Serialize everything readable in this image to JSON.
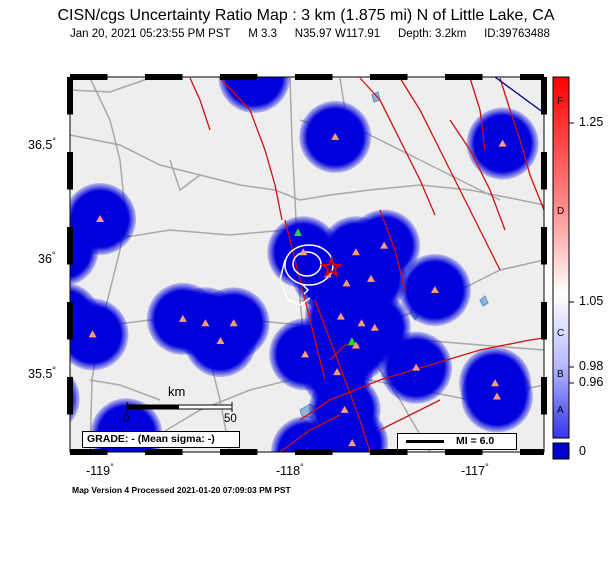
{
  "title": "CISN/cgs Uncertainty Ratio Map : 3 km (1.875 mi) N of Little Lake, CA",
  "subtitle": {
    "datetime": "Jan 20, 2021 05:23:55 PM PST",
    "magnitude": "M 3.3",
    "location": "N35.97 W117.91",
    "depth": "Depth: 3.2km",
    "id": "ID:39763488"
  },
  "axes": {
    "lat_labels": [
      {
        "value": "36.5",
        "deg": "°"
      },
      {
        "value": "36",
        "deg": "°"
      },
      {
        "value": "35.5",
        "deg": "°"
      }
    ],
    "lon_labels": [
      {
        "value": "-119",
        "deg": "°"
      },
      {
        "value": "-118",
        "deg": "°"
      },
      {
        "value": "-117",
        "deg": "°"
      }
    ]
  },
  "scale_bar": {
    "unit": "km",
    "min": "0",
    "max": "50"
  },
  "grade_text": "GRADE: - (Mean sigma: -)",
  "mmi_legend": "MI = 6.0",
  "footer": "Map Version 4 Processed 2021-01-20 07:09:03 PM PST",
  "colorbar": {
    "ticks": [
      "1.25",
      "1.05",
      "0.98",
      "0.96",
      "0"
    ],
    "letters": [
      "F",
      "D",
      "C",
      "B",
      "A"
    ],
    "colors": {
      "top": "#ff0000",
      "mid": "#ffffff",
      "bottom": "#0000cc"
    }
  },
  "colors": {
    "land": "#eeeeee",
    "station_blob": "#0000dd",
    "fault": "#cc1111",
    "road": "#a8a8a8",
    "water": "#8fb3d9",
    "station_marker": "#ff9a7a",
    "epicenter": "#dd0000"
  },
  "stations": [
    {
      "lon": -118.32,
      "lat": 36.83
    },
    {
      "lon": -117.89,
      "lat": 36.56
    },
    {
      "lon": -117.0,
      "lat": 36.53
    },
    {
      "lon": -119.34,
      "lat": 36.05
    },
    {
      "lon": -119.14,
      "lat": 36.19
    },
    {
      "lon": -118.06,
      "lat": 36.04
    },
    {
      "lon": -117.78,
      "lat": 36.04
    },
    {
      "lon": -117.63,
      "lat": 36.07
    },
    {
      "lon": -117.36,
      "lat": 35.87
    },
    {
      "lon": -117.93,
      "lat": 35.94
    },
    {
      "lon": -117.83,
      "lat": 35.9
    },
    {
      "lon": -117.7,
      "lat": 35.92
    },
    {
      "lon": -117.86,
      "lat": 35.75
    },
    {
      "lon": -117.75,
      "lat": 35.72
    },
    {
      "lon": -117.68,
      "lat": 35.7
    },
    {
      "lon": -117.78,
      "lat": 35.62
    },
    {
      "lon": -118.05,
      "lat": 35.58
    },
    {
      "lon": -117.88,
      "lat": 35.5
    },
    {
      "lon": -117.46,
      "lat": 35.52
    },
    {
      "lon": -117.04,
      "lat": 35.45
    },
    {
      "lon": -117.03,
      "lat": 35.39
    },
    {
      "lon": -119.33,
      "lat": 35.74
    },
    {
      "lon": -119.18,
      "lat": 35.67
    },
    {
      "lon": -118.7,
      "lat": 35.74
    },
    {
      "lon": -118.58,
      "lat": 35.72
    },
    {
      "lon": -118.43,
      "lat": 35.72
    },
    {
      "lon": -118.5,
      "lat": 35.64
    },
    {
      "lon": -119.44,
      "lat": 35.38
    },
    {
      "lon": -119.0,
      "lat": 35.22
    },
    {
      "lon": -118.04,
      "lat": 35.14
    },
    {
      "lon": -117.84,
      "lat": 35.33
    },
    {
      "lon": -117.8,
      "lat": 35.18
    }
  ],
  "epicenter": {
    "lon": -117.91,
    "lat": 35.97
  }
}
